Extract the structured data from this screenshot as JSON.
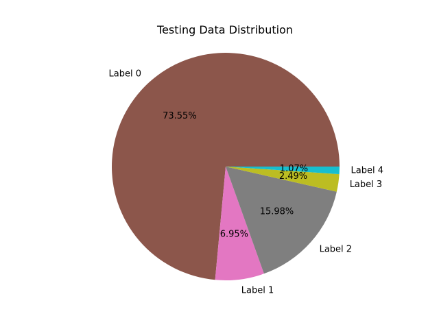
{
  "chart_data": {
    "type": "pie",
    "title": "Testing Data Distribution",
    "labels": [
      "Label 0",
      "Label 1",
      "Label 2",
      "Label 3",
      "Label 4"
    ],
    "values": [
      73.55,
      6.95,
      15.98,
      2.49,
      1.07
    ],
    "percent_labels": [
      "73.55%",
      "6.95%",
      "15.98%",
      "2.49%",
      "1.07%"
    ],
    "colors": [
      "#8c564b",
      "#e377c2",
      "#7f7f7f",
      "#bcbd22",
      "#17becf"
    ],
    "start_angle_deg": 0,
    "direction": "counterclockwise",
    "legend": "none"
  }
}
